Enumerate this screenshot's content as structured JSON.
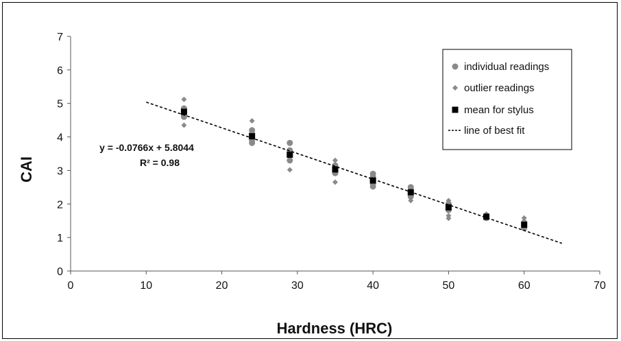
{
  "chart_data": {
    "type": "scatter",
    "title": "",
    "xlabel": "Hardness (HRC)",
    "ylabel": "CAI",
    "xlim": [
      0,
      70
    ],
    "ylim": [
      0,
      7
    ],
    "x_ticks": [
      "0",
      "10",
      "20",
      "30",
      "40",
      "50",
      "60",
      "70"
    ],
    "y_ticks": [
      "0",
      "1",
      "2",
      "3",
      "4",
      "5",
      "6",
      "7"
    ],
    "grid": false,
    "legend_position": "top-right",
    "series": [
      {
        "name": "individual readings",
        "color": "#8a8a8a",
        "marker": "circle",
        "points": [
          [
            15,
            4.85
          ],
          [
            15,
            4.75
          ],
          [
            15,
            4.65
          ],
          [
            15,
            4.6
          ],
          [
            24,
            4.2
          ],
          [
            24,
            4.1
          ],
          [
            24,
            4.0
          ],
          [
            24,
            3.9
          ],
          [
            24,
            3.82
          ],
          [
            29,
            3.82
          ],
          [
            29,
            3.6
          ],
          [
            29,
            3.5
          ],
          [
            29,
            3.45
          ],
          [
            29,
            3.3
          ],
          [
            35,
            3.15
          ],
          [
            35,
            3.05
          ],
          [
            35,
            3.0
          ],
          [
            35,
            2.92
          ],
          [
            40,
            2.9
          ],
          [
            40,
            2.8
          ],
          [
            40,
            2.7
          ],
          [
            40,
            2.6
          ],
          [
            40,
            2.52
          ],
          [
            45,
            2.5
          ],
          [
            45,
            2.4
          ],
          [
            45,
            2.3
          ],
          [
            45,
            2.22
          ],
          [
            50,
            2.0
          ],
          [
            50,
            1.9
          ],
          [
            50,
            1.82
          ],
          [
            55,
            1.65
          ],
          [
            55,
            1.58
          ],
          [
            60,
            1.45
          ],
          [
            60,
            1.35
          ],
          [
            60,
            1.28
          ]
        ]
      },
      {
        "name": "outlier readings",
        "color": "#8a8a8a",
        "marker": "diamond",
        "points": [
          [
            15,
            5.12
          ],
          [
            15,
            4.35
          ],
          [
            24,
            4.48
          ],
          [
            29,
            3.02
          ],
          [
            35,
            3.3
          ],
          [
            35,
            2.65
          ],
          [
            45,
            2.1
          ],
          [
            50,
            2.1
          ],
          [
            50,
            1.65
          ],
          [
            50,
            1.57
          ],
          [
            55,
            1.7
          ],
          [
            60,
            1.58
          ]
        ]
      },
      {
        "name": "mean for stylus",
        "color": "#000000",
        "marker": "square",
        "points": [
          [
            15,
            4.75
          ],
          [
            24,
            4.02
          ],
          [
            29,
            3.47
          ],
          [
            35,
            3.03
          ],
          [
            40,
            2.7
          ],
          [
            45,
            2.35
          ],
          [
            50,
            1.9
          ],
          [
            55,
            1.62
          ],
          [
            60,
            1.38
          ]
        ]
      },
      {
        "name": "line of best fit",
        "color": "#000000",
        "type": "dashed-line",
        "slope": -0.0766,
        "intercept": 5.8044,
        "x_range": [
          10,
          65
        ]
      }
    ],
    "annotations": {
      "equation": "y = -0.0766x + 5.8044",
      "r_squared": "R² = 0.98"
    }
  }
}
